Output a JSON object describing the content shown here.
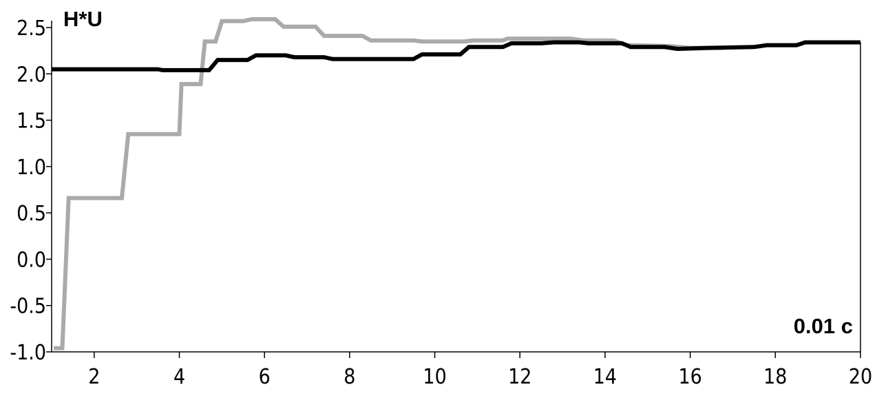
{
  "chart_data": {
    "type": "line",
    "ylabel": "H*U",
    "xlabel": "0.01 c",
    "xlim": [
      1,
      20
    ],
    "ylim": [
      -1.0,
      2.5
    ],
    "x_ticks": [
      2,
      4,
      6,
      8,
      10,
      12,
      14,
      16,
      18,
      20
    ],
    "x_tick_labels": [
      "2",
      "4",
      "6",
      "8",
      "10",
      "12",
      "14",
      "16",
      "18",
      "20"
    ],
    "y_ticks": [
      -1.0,
      -0.5,
      0.0,
      0.5,
      1.0,
      1.5,
      2.0,
      2.5
    ],
    "y_tick_labels": [
      "-1.0",
      "-0.5",
      "0.0",
      "0.5",
      "1.0",
      "1.5",
      "2.0",
      "2.5"
    ],
    "grid": false,
    "series": [
      {
        "color": "#aaaaaa",
        "points": [
          [
            1.05,
            -0.96
          ],
          [
            1.25,
            -0.96
          ],
          [
            1.4,
            0.66
          ],
          [
            2.65,
            0.66
          ],
          [
            2.8,
            1.35
          ],
          [
            4.0,
            1.35
          ],
          [
            4.05,
            1.89
          ],
          [
            4.5,
            1.89
          ],
          [
            4.6,
            2.35
          ],
          [
            4.85,
            2.35
          ],
          [
            5.0,
            2.57
          ],
          [
            5.5,
            2.57
          ],
          [
            5.7,
            2.59
          ],
          [
            6.25,
            2.59
          ],
          [
            6.45,
            2.51
          ],
          [
            7.2,
            2.51
          ],
          [
            7.4,
            2.41
          ],
          [
            8.3,
            2.41
          ],
          [
            8.5,
            2.36
          ],
          [
            9.5,
            2.36
          ],
          [
            9.7,
            2.35
          ],
          [
            10.7,
            2.35
          ],
          [
            10.9,
            2.36
          ],
          [
            11.6,
            2.36
          ],
          [
            11.7,
            2.38
          ],
          [
            13.2,
            2.38
          ],
          [
            13.5,
            2.36
          ],
          [
            14.2,
            2.36
          ],
          [
            14.5,
            2.31
          ],
          [
            15.5,
            2.3
          ],
          [
            16.0,
            2.28
          ],
          [
            16.8,
            2.28
          ]
        ]
      },
      {
        "color": "#000000",
        "points": [
          [
            1.0,
            2.05
          ],
          [
            3.5,
            2.05
          ],
          [
            3.6,
            2.04
          ],
          [
            4.7,
            2.04
          ],
          [
            4.9,
            2.15
          ],
          [
            5.6,
            2.15
          ],
          [
            5.8,
            2.2
          ],
          [
            6.5,
            2.2
          ],
          [
            6.7,
            2.18
          ],
          [
            7.4,
            2.18
          ],
          [
            7.6,
            2.16
          ],
          [
            9.5,
            2.16
          ],
          [
            9.7,
            2.21
          ],
          [
            10.6,
            2.21
          ],
          [
            10.8,
            2.29
          ],
          [
            11.6,
            2.29
          ],
          [
            11.8,
            2.33
          ],
          [
            12.5,
            2.33
          ],
          [
            12.8,
            2.34
          ],
          [
            13.4,
            2.34
          ],
          [
            13.6,
            2.33
          ],
          [
            14.4,
            2.33
          ],
          [
            14.6,
            2.29
          ],
          [
            15.4,
            2.29
          ],
          [
            15.7,
            2.27
          ],
          [
            16.4,
            2.28
          ],
          [
            17.5,
            2.29
          ],
          [
            17.8,
            2.31
          ],
          [
            18.5,
            2.31
          ],
          [
            18.7,
            2.34
          ],
          [
            20.0,
            2.34
          ]
        ]
      }
    ]
  }
}
